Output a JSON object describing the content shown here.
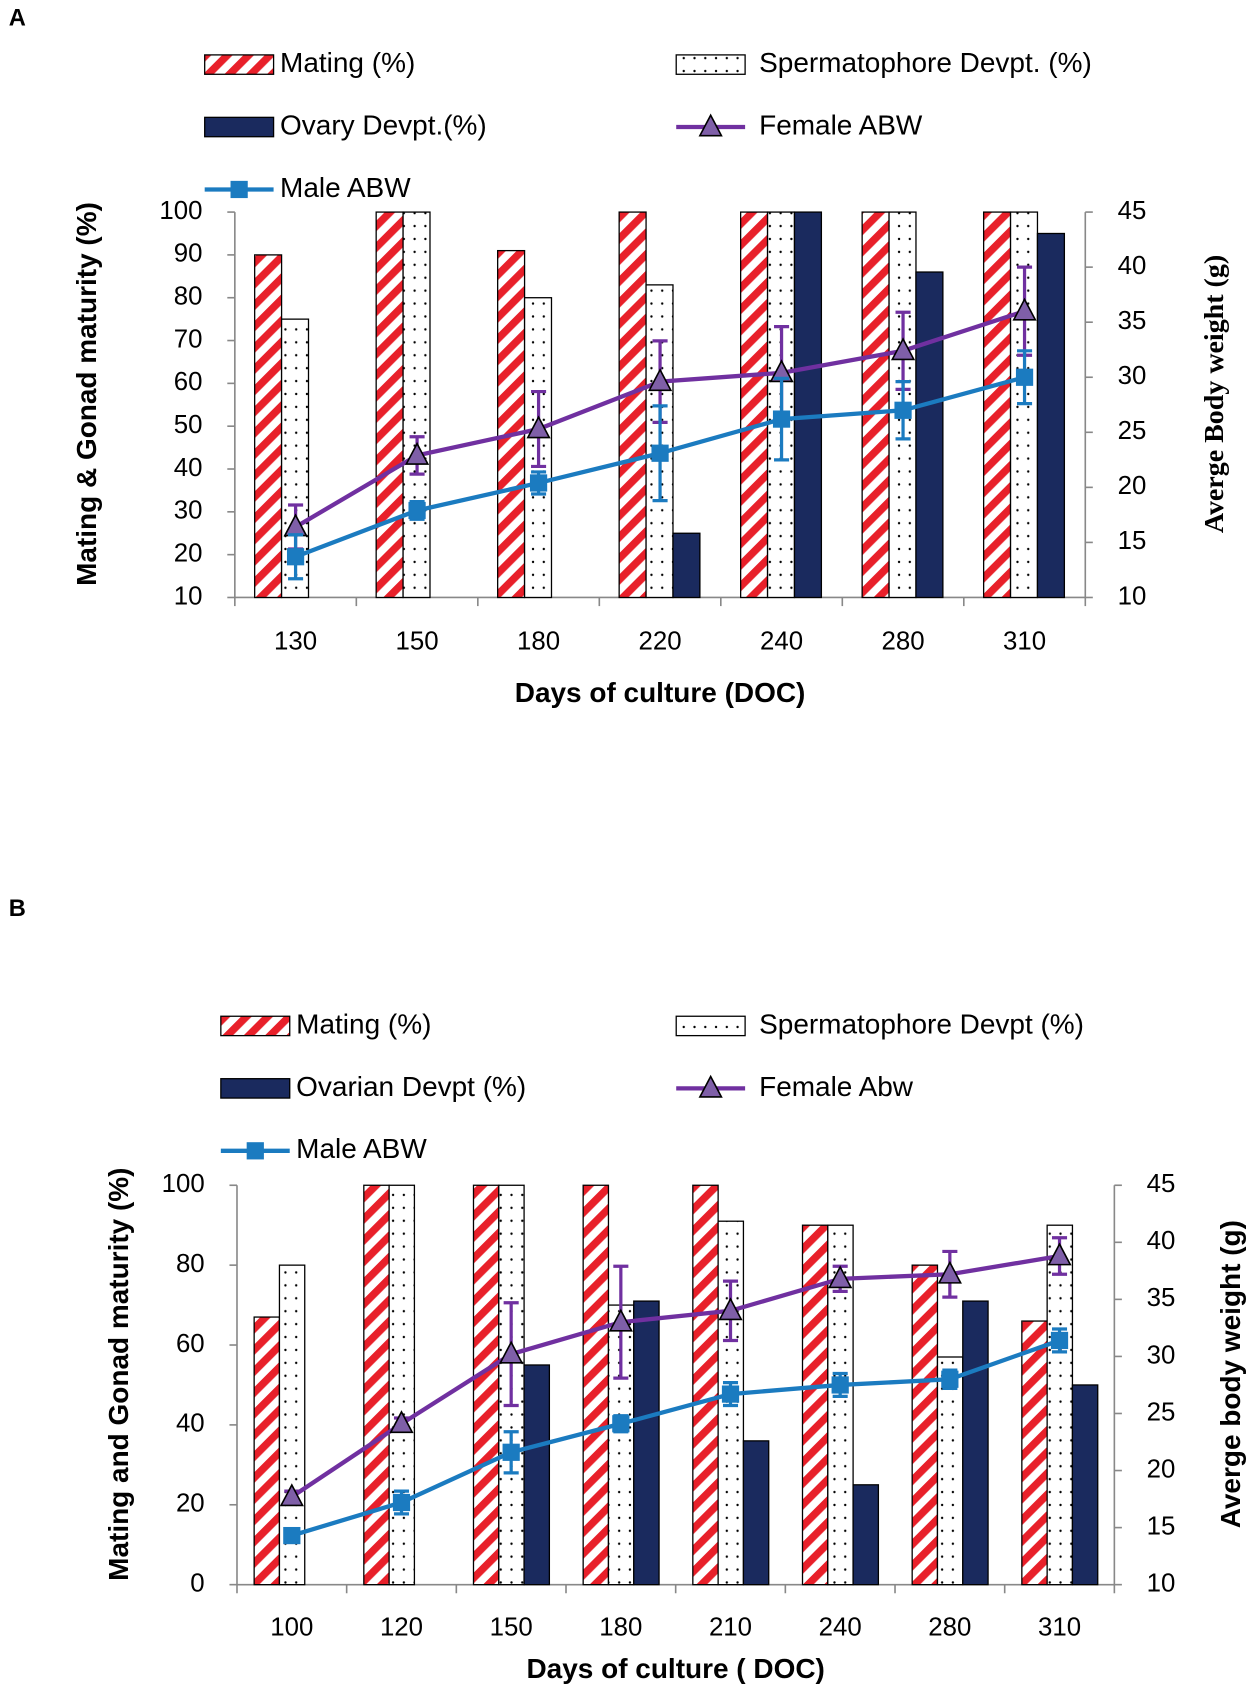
{
  "chart_data": [
    {
      "type": "bar",
      "label": "A",
      "xlabel": "Days of culture (DOC)",
      "ylabel": "Mating  & Gonad maturity  (%)",
      "y2label": "Averge Body weight (g)",
      "categories": [
        "130",
        "150",
        "180",
        "220",
        "240",
        "280",
        "310"
      ],
      "ylim": [
        10,
        100
      ],
      "yticks": [
        10,
        20,
        30,
        40,
        50,
        60,
        70,
        80,
        90,
        100
      ],
      "y2lim": [
        10,
        45
      ],
      "y2ticks": [
        10,
        15,
        20,
        25,
        30,
        35,
        40,
        45
      ],
      "series": [
        {
          "name": "Mating  (%)",
          "color": "#e8202a",
          "pattern": "stripes",
          "values": [
            90,
            100,
            91,
            100,
            100,
            100,
            100
          ]
        },
        {
          "name": "Spermatophore  Devpt. (%)",
          "color": "#000000",
          "pattern": "dots",
          "values": [
            75,
            100,
            80,
            83,
            100,
            100,
            100
          ]
        },
        {
          "name": "Ovary Devpt.(%)",
          "color": "#1a2a5e",
          "pattern": "solid",
          "values": [
            null,
            null,
            null,
            25,
            100,
            86,
            95
          ]
        },
        {
          "name": "Female ABW",
          "color": "#7030a0",
          "marker": "triangle",
          "axis": "y2",
          "values": [
            16.4,
            22.9,
            25.3,
            29.6,
            30.4,
            32.4,
            36
          ],
          "errors": [
            2,
            1.7,
            3.4,
            3.7,
            4.2,
            3.5,
            4
          ]
        },
        {
          "name": "Male ABW",
          "color": "#1b7bc0",
          "marker": "square",
          "axis": "y2",
          "values": [
            13.7,
            17.9,
            20.4,
            23.1,
            26.2,
            27,
            30
          ],
          "errors": [
            2,
            0.8,
            1,
            4.3,
            3.7,
            2.6,
            2.4
          ]
        }
      ]
    },
    {
      "type": "bar",
      "label": "B",
      "xlabel": "Days of culture ( DOC)",
      "ylabel": "Mating and Gonad  maturity  (%)",
      "y2label": "Averge body weight (g)",
      "categories": [
        "100",
        "120",
        "150",
        "180",
        "210",
        "240",
        "280",
        "310"
      ],
      "ylim": [
        0,
        100
      ],
      "yticks": [
        0,
        20,
        40,
        60,
        80,
        100
      ],
      "y2lim": [
        10,
        45
      ],
      "y2ticks": [
        10,
        15,
        20,
        25,
        30,
        35,
        40,
        45
      ],
      "series": [
        {
          "name": "Mating  (%)",
          "color": "#e8202a",
          "pattern": "stripes",
          "values": [
            67,
            100,
            100,
            100,
            100,
            90,
            80,
            66
          ]
        },
        {
          "name": "Spermatophore Devpt (%)",
          "color": "#000000",
          "pattern": "dots",
          "values": [
            80,
            100,
            100,
            70,
            91,
            90,
            57,
            90
          ]
        },
        {
          "name": "Ovarian Devpt (%)",
          "color": "#1a2a5e",
          "pattern": "solid",
          "values": [
            null,
            null,
            55,
            71,
            36,
            25,
            71,
            50
          ]
        },
        {
          "name": "Female Abw",
          "color": "#7030a0",
          "marker": "triangle",
          "axis": "y2",
          "values": [
            17.7,
            24.1,
            30.2,
            33,
            34,
            36.8,
            37.2,
            38.8
          ],
          "errors": [
            0.5,
            0.5,
            4.5,
            4.9,
            2.6,
            1.1,
            2,
            1.6
          ]
        },
        {
          "name": "Male ABW",
          "color": "#1b7bc0",
          "marker": "square",
          "axis": "y2",
          "values": [
            14.3,
            17.2,
            21.6,
            24.1,
            26.7,
            27.5,
            28,
            31.4
          ],
          "errors": [
            0.5,
            1,
            1.8,
            0.7,
            1,
            1,
            0.8,
            1
          ]
        }
      ]
    }
  ]
}
